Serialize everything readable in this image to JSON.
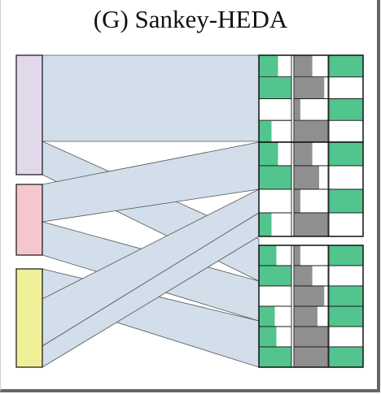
{
  "title": "(G) Sankey-HEDA",
  "colors": {
    "flow": "#d2dee9",
    "flow_stroke": "#555555",
    "node_stroke": "#111111",
    "cell_green": "#52c48e",
    "cell_gray": "#8f8f8f",
    "cell_white": "#ffffff",
    "source_nodes": [
      "#e2d8ec",
      "#f6c6cf",
      "#f1ef96"
    ]
  },
  "sources": [
    {
      "id": "s1",
      "color": "#e2d8ec",
      "share": 0.45
    },
    {
      "id": "s2",
      "color": "#f6c6cf",
      "share": 0.27
    },
    {
      "id": "s3",
      "color": "#f1ef96",
      "share": 0.37
    }
  ],
  "targets": [
    {
      "id": "t1",
      "rows": [
        {
          "a": 0.6,
          "b": 0.55,
          "c": 1.0
        },
        {
          "a": 1.0,
          "b": 0.9,
          "c": 0.0
        },
        {
          "a": 0.0,
          "b": 0.2,
          "c": 1.0
        },
        {
          "a": 0.4,
          "b": 1.0,
          "c": 0.0
        }
      ]
    },
    {
      "id": "t2",
      "rows": [
        {
          "a": 0.6,
          "b": 0.55,
          "c": 1.0
        },
        {
          "a": 1.0,
          "b": 0.75,
          "c": 0.0
        },
        {
          "a": 0.0,
          "b": 0.2,
          "c": 1.0
        },
        {
          "a": 0.4,
          "b": 1.0,
          "c": 0.0
        }
      ]
    },
    {
      "id": "t3",
      "rows": [
        {
          "a": 0.55,
          "b": 0.2,
          "c": 1.0
        },
        {
          "a": 1.0,
          "b": 0.55,
          "c": 0.0
        },
        {
          "a": 0.0,
          "b": 0.9,
          "c": 1.0
        },
        {
          "a": 0.5,
          "b": 0.7,
          "c": 1.0
        },
        {
          "a": 0.55,
          "b": 1.0,
          "c": 0.0
        },
        {
          "a": 1.0,
          "b": 1.0,
          "c": 1.0
        }
      ]
    }
  ],
  "flows": [
    {
      "source": "s1",
      "target": "t1",
      "value": 1.0
    },
    {
      "source": "s1",
      "target": "t3",
      "value": 0.3
    },
    {
      "source": "s2",
      "target": "t2",
      "value": 0.7
    },
    {
      "source": "s2",
      "target": "t3",
      "value": 0.4
    },
    {
      "source": "s3",
      "target": "t3",
      "value": 0.55
    },
    {
      "source": "s3",
      "target": "t2",
      "value": 0.25
    },
    {
      "source": "s3",
      "target": "t1",
      "value": 0.2
    }
  ]
}
